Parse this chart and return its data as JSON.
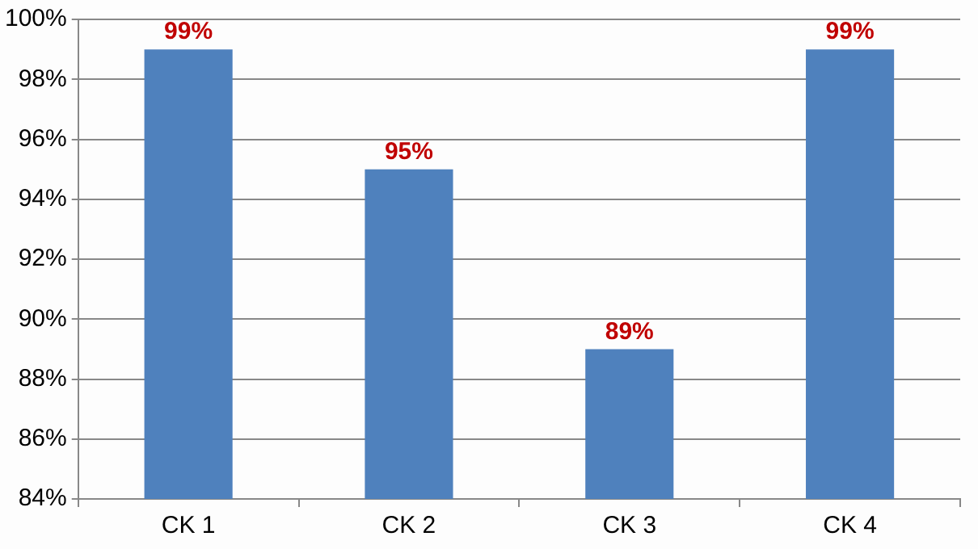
{
  "chart_data": {
    "type": "bar",
    "categories": [
      "CK 1",
      "CK 2",
      "CK 3",
      "CK 4"
    ],
    "values": [
      99,
      95,
      89,
      99
    ],
    "color": "#4f81bd",
    "value_labels": [
      "99%",
      "95%",
      "89%",
      "99%"
    ],
    "ylim": [
      84,
      100
    ],
    "yticks": [
      {
        "value": 84,
        "label": "84%"
      },
      {
        "value": 86,
        "label": "86%"
      },
      {
        "value": 88,
        "label": "88%"
      },
      {
        "value": 90,
        "label": "90%"
      },
      {
        "value": 92,
        "label": "92%"
      },
      {
        "value": 94,
        "label": "94%"
      },
      {
        "value": 96,
        "label": "96%"
      },
      {
        "value": 98,
        "label": "98%"
      },
      {
        "value": 100,
        "label": "100%"
      }
    ],
    "grid": "y",
    "legend": false
  }
}
